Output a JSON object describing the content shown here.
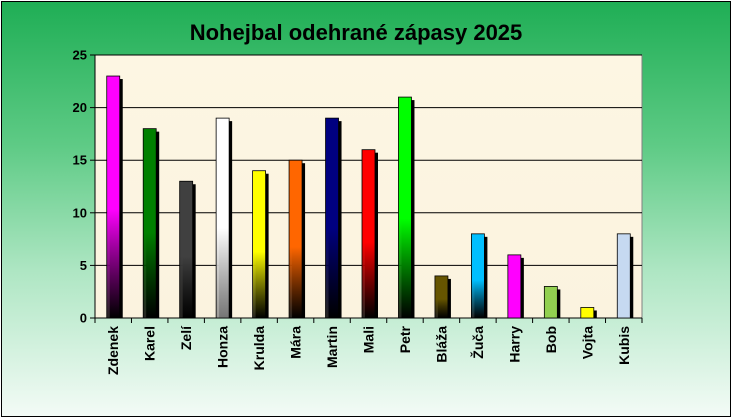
{
  "chart_data": {
    "type": "bar",
    "title": "Nohejbal odehrané zápasy 2025",
    "xlabel": "",
    "ylabel": "",
    "ylim": [
      0,
      25
    ],
    "yticks": [
      0,
      5,
      10,
      15,
      20,
      25
    ],
    "grid": true,
    "legend": "none",
    "categories": [
      "Zdenek",
      "Karel",
      "Zelí",
      "Honza",
      "Krulda",
      "Mára",
      "Martin",
      "Mali",
      "Petr",
      "Bláža",
      "Žuča",
      "Harry",
      "Bob",
      "Vojta",
      "Kubis"
    ],
    "values": [
      23,
      18,
      13,
      19,
      14,
      15,
      19,
      16,
      21,
      4,
      8,
      6,
      3,
      1,
      8
    ],
    "colors": [
      "#ff00ff",
      "#008000",
      "#404040",
      "#ffffff",
      "#ffff00",
      "#ff6600",
      "#000080",
      "#ff0000",
      "#00ff00",
      "#665500",
      "#00bfff",
      "#ff00ff",
      "#92d050",
      "#ffff00",
      "#c6d9f1"
    ],
    "gradient": [
      true,
      true,
      true,
      true,
      true,
      true,
      true,
      true,
      true,
      true,
      true,
      false,
      false,
      false,
      false
    ]
  }
}
